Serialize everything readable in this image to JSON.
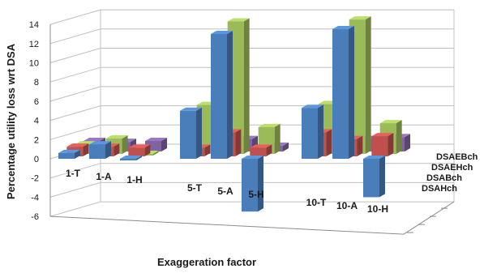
{
  "chart_data": {
    "type": "bar",
    "title": "",
    "xlabel": "Exaggeration factor",
    "ylabel": "Percentage utility loss wrt DSA",
    "ylim": [
      -6,
      14
    ],
    "yticks": [
      "-6",
      "-4",
      "-2",
      "0",
      "2",
      "4",
      "6",
      "8",
      "10",
      "12",
      "14"
    ],
    "grid": true,
    "legend": "none (series names printed along depth axis)",
    "categories": [
      "1-T",
      "1-A",
      "1-H",
      "5-T",
      "5-A",
      "5-H",
      "10-T",
      "10-A",
      "10-H"
    ],
    "series": [
      {
        "name": "DSAHch",
        "color": "#4a7ebb",
        "values": [
          0.6,
          1.5,
          -0.1,
          5.0,
          13.0,
          -5.5,
          5.3,
          13.5,
          -4.0
        ]
      },
      {
        "name": "DSABch",
        "color": "#c0504d",
        "values": [
          1.0,
          1.0,
          0.9,
          0.9,
          2.5,
          0.9,
          2.5,
          1.8,
          2.1
        ]
      },
      {
        "name": "DSAEHch",
        "color": "#9bbb59",
        "values": [
          1.0,
          1.6,
          0.0,
          5.1,
          13.8,
          2.8,
          5.2,
          14.0,
          3.2
        ]
      },
      {
        "name": "DSAEBch",
        "color": "#8064a2",
        "values": [
          1.1,
          1.0,
          1.1,
          1.8,
          1.3,
          0.6,
          1.3,
          1.3,
          1.5
        ]
      }
    ]
  }
}
